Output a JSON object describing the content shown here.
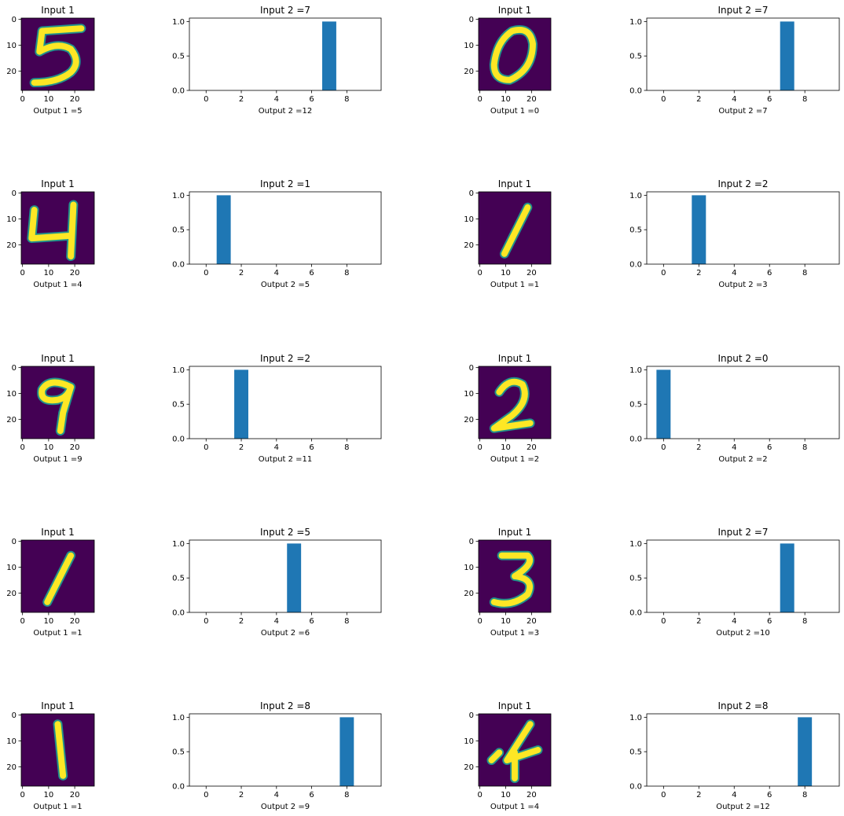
{
  "figure": {
    "background": "#ffffff",
    "colors": {
      "bar": "#1f77b4",
      "digit_bg": "#440154",
      "digit_fg": "#fde725",
      "digit_edge": "#21918c"
    }
  },
  "chart_data": [
    {
      "type": "heatmap",
      "title": "Input 1",
      "xlabel": "Output 1 =5",
      "digit": "5",
      "xticks": [
        "0",
        "10",
        "20"
      ],
      "yticks": [
        "0",
        "10",
        "20"
      ],
      "xlim": [
        -0.5,
        27.5
      ],
      "ylim": [
        27.5,
        -0.5
      ]
    },
    {
      "type": "bar",
      "title": "Input 2 =7",
      "xlabel": "Output 2 =12",
      "categories": [
        0,
        1,
        2,
        3,
        4,
        5,
        6,
        7,
        8,
        9
      ],
      "values": [
        0,
        0,
        0,
        0,
        0,
        0,
        0,
        1,
        0,
        0
      ],
      "xticks": [
        "0",
        "2",
        "4",
        "6",
        "8"
      ],
      "yticks": [
        "0.0",
        "0.5",
        "1.0"
      ],
      "xlim": [
        -0.95,
        9.95
      ],
      "ylim": [
        0,
        1.05
      ]
    },
    {
      "type": "heatmap",
      "title": "Input 1",
      "xlabel": "Output 1 =0",
      "digit": "0",
      "xticks": [
        "0",
        "10",
        "20"
      ],
      "yticks": [
        "0",
        "10",
        "20"
      ],
      "xlim": [
        -0.5,
        27.5
      ],
      "ylim": [
        27.5,
        -0.5
      ]
    },
    {
      "type": "bar",
      "title": "Input 2 =7",
      "xlabel": "Output 2 =7",
      "categories": [
        0,
        1,
        2,
        3,
        4,
        5,
        6,
        7,
        8,
        9
      ],
      "values": [
        0,
        0,
        0,
        0,
        0,
        0,
        0,
        1,
        0,
        0
      ],
      "xticks": [
        "0",
        "2",
        "4",
        "6",
        "8"
      ],
      "yticks": [
        "0.0",
        "0.5",
        "1.0"
      ],
      "xlim": [
        -0.95,
        9.95
      ],
      "ylim": [
        0,
        1.05
      ]
    },
    {
      "type": "heatmap",
      "title": "Input 1",
      "xlabel": "Output 1 =4",
      "digit": "4",
      "xticks": [
        "0",
        "10",
        "20"
      ],
      "yticks": [
        "0",
        "10",
        "20"
      ],
      "xlim": [
        -0.5,
        27.5
      ],
      "ylim": [
        27.5,
        -0.5
      ]
    },
    {
      "type": "bar",
      "title": "Input 2 =1",
      "xlabel": "Output 2 =5",
      "categories": [
        0,
        1,
        2,
        3,
        4,
        5,
        6,
        7,
        8,
        9
      ],
      "values": [
        0,
        1,
        0,
        0,
        0,
        0,
        0,
        0,
        0,
        0
      ],
      "xticks": [
        "0",
        "2",
        "4",
        "6",
        "8"
      ],
      "yticks": [
        "0.0",
        "0.5",
        "1.0"
      ],
      "xlim": [
        -0.95,
        9.95
      ],
      "ylim": [
        0,
        1.05
      ]
    },
    {
      "type": "heatmap",
      "title": "Input 1",
      "xlabel": "Output 1 =1",
      "digit": "1",
      "xticks": [
        "0",
        "10",
        "20"
      ],
      "yticks": [
        "0",
        "10",
        "20"
      ],
      "xlim": [
        -0.5,
        27.5
      ],
      "ylim": [
        27.5,
        -0.5
      ]
    },
    {
      "type": "bar",
      "title": "Input 2 =2",
      "xlabel": "Output 2 =3",
      "categories": [
        0,
        1,
        2,
        3,
        4,
        5,
        6,
        7,
        8,
        9
      ],
      "values": [
        0,
        0,
        1,
        0,
        0,
        0,
        0,
        0,
        0,
        0
      ],
      "xticks": [
        "0",
        "2",
        "4",
        "6",
        "8"
      ],
      "yticks": [
        "0.0",
        "0.5",
        "1.0"
      ],
      "xlim": [
        -0.95,
        9.95
      ],
      "ylim": [
        0,
        1.05
      ]
    },
    {
      "type": "heatmap",
      "title": "Input 1",
      "xlabel": "Output 1 =9",
      "digit": "9",
      "xticks": [
        "0",
        "10",
        "20"
      ],
      "yticks": [
        "0",
        "10",
        "20"
      ],
      "xlim": [
        -0.5,
        27.5
      ],
      "ylim": [
        27.5,
        -0.5
      ]
    },
    {
      "type": "bar",
      "title": "Input 2 =2",
      "xlabel": "Output 2 =11",
      "categories": [
        0,
        1,
        2,
        3,
        4,
        5,
        6,
        7,
        8,
        9
      ],
      "values": [
        0,
        0,
        1,
        0,
        0,
        0,
        0,
        0,
        0,
        0
      ],
      "xticks": [
        "0",
        "2",
        "4",
        "6",
        "8"
      ],
      "yticks": [
        "0.0",
        "0.5",
        "1.0"
      ],
      "xlim": [
        -0.95,
        9.95
      ],
      "ylim": [
        0,
        1.05
      ]
    },
    {
      "type": "heatmap",
      "title": "Input 1",
      "xlabel": "Output 1 =2",
      "digit": "2",
      "xticks": [
        "0",
        "10",
        "20"
      ],
      "yticks": [
        "0",
        "10",
        "20"
      ],
      "xlim": [
        -0.5,
        27.5
      ],
      "ylim": [
        27.5,
        -0.5
      ]
    },
    {
      "type": "bar",
      "title": "Input 2 =0",
      "xlabel": "Output 2 =2",
      "categories": [
        0,
        1,
        2,
        3,
        4,
        5,
        6,
        7,
        8,
        9
      ],
      "values": [
        1,
        0,
        0,
        0,
        0,
        0,
        0,
        0,
        0,
        0
      ],
      "xticks": [
        "0",
        "2",
        "4",
        "6",
        "8"
      ],
      "yticks": [
        "0.0",
        "0.5",
        "1.0"
      ],
      "xlim": [
        -0.95,
        9.95
      ],
      "ylim": [
        0,
        1.05
      ]
    },
    {
      "type": "heatmap",
      "title": "Input 1",
      "xlabel": "Output 1 =1",
      "digit": "1",
      "xticks": [
        "0",
        "10",
        "20"
      ],
      "yticks": [
        "0",
        "10",
        "20"
      ],
      "xlim": [
        -0.5,
        27.5
      ],
      "ylim": [
        27.5,
        -0.5
      ]
    },
    {
      "type": "bar",
      "title": "Input 2 =5",
      "xlabel": "Output 2 =6",
      "categories": [
        0,
        1,
        2,
        3,
        4,
        5,
        6,
        7,
        8,
        9
      ],
      "values": [
        0,
        0,
        0,
        0,
        0,
        1,
        0,
        0,
        0,
        0
      ],
      "xticks": [
        "0",
        "2",
        "4",
        "6",
        "8"
      ],
      "yticks": [
        "0.0",
        "0.5",
        "1.0"
      ],
      "xlim": [
        -0.95,
        9.95
      ],
      "ylim": [
        0,
        1.05
      ]
    },
    {
      "type": "heatmap",
      "title": "Input 1",
      "xlabel": "Output 1 =3",
      "digit": "3",
      "xticks": [
        "0",
        "10",
        "20"
      ],
      "yticks": [
        "0",
        "10",
        "20"
      ],
      "xlim": [
        -0.5,
        27.5
      ],
      "ylim": [
        27.5,
        -0.5
      ]
    },
    {
      "type": "bar",
      "title": "Input 2 =7",
      "xlabel": "Output 2 =10",
      "categories": [
        0,
        1,
        2,
        3,
        4,
        5,
        6,
        7,
        8,
        9
      ],
      "values": [
        0,
        0,
        0,
        0,
        0,
        0,
        0,
        1,
        0,
        0
      ],
      "xticks": [
        "0",
        "2",
        "4",
        "6",
        "8"
      ],
      "yticks": [
        "0.0",
        "0.5",
        "1.0"
      ],
      "xlim": [
        -0.95,
        9.95
      ],
      "ylim": [
        0,
        1.05
      ]
    },
    {
      "type": "heatmap",
      "title": "Input 1",
      "xlabel": "Output 1 =1",
      "digit": "1",
      "xticks": [
        "0",
        "10",
        "20"
      ],
      "yticks": [
        "0",
        "10",
        "20"
      ],
      "xlim": [
        -0.5,
        27.5
      ],
      "ylim": [
        27.5,
        -0.5
      ]
    },
    {
      "type": "bar",
      "title": "Input 2 =8",
      "xlabel": "Output 2 =9",
      "categories": [
        0,
        1,
        2,
        3,
        4,
        5,
        6,
        7,
        8,
        9
      ],
      "values": [
        0,
        0,
        0,
        0,
        0,
        0,
        0,
        0,
        1,
        0
      ],
      "xticks": [
        "0",
        "2",
        "4",
        "6",
        "8"
      ],
      "yticks": [
        "0.0",
        "0.5",
        "1.0"
      ],
      "xlim": [
        -0.95,
        9.95
      ],
      "ylim": [
        0,
        1.05
      ]
    },
    {
      "type": "heatmap",
      "title": "Input 1",
      "xlabel": "Output 1 =4",
      "digit": "4",
      "xticks": [
        "0",
        "10",
        "20"
      ],
      "yticks": [
        "0",
        "10",
        "20"
      ],
      "xlim": [
        -0.5,
        27.5
      ],
      "ylim": [
        27.5,
        -0.5
      ]
    },
    {
      "type": "bar",
      "title": "Input 2 =8",
      "xlabel": "Output 2 =12",
      "categories": [
        0,
        1,
        2,
        3,
        4,
        5,
        6,
        7,
        8,
        9
      ],
      "values": [
        0,
        0,
        0,
        0,
        0,
        0,
        0,
        0,
        1,
        0
      ],
      "xticks": [
        "0",
        "2",
        "4",
        "6",
        "8"
      ],
      "yticks": [
        "0.0",
        "0.5",
        "1.0"
      ],
      "xlim": [
        -0.95,
        9.95
      ],
      "ylim": [
        0,
        1.05
      ]
    }
  ]
}
